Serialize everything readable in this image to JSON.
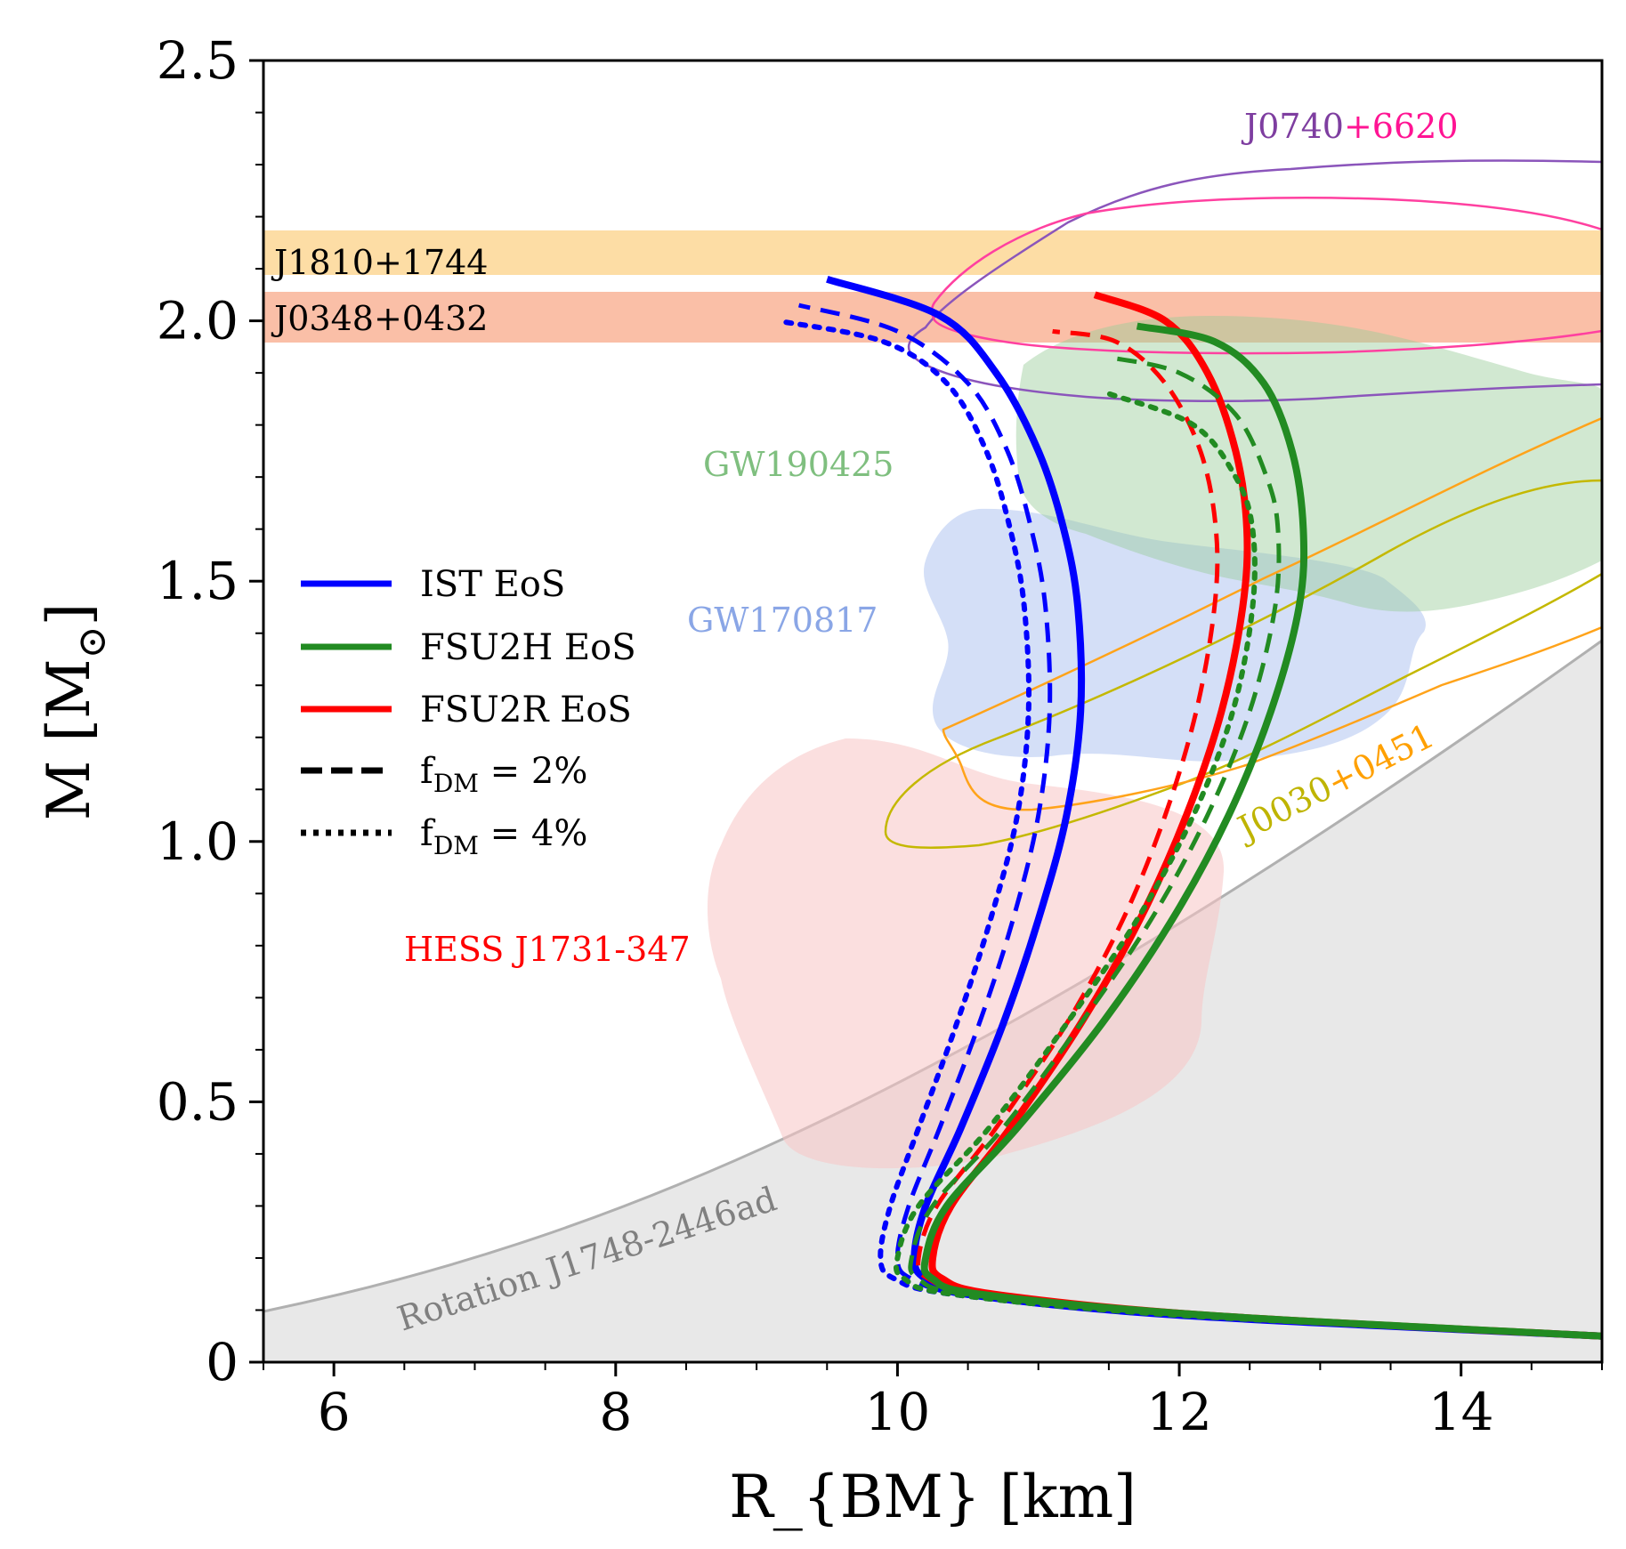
{
  "chart_data": {
    "type": "line",
    "xlabel": "R_{BM} [km]",
    "ylabel": "M [M",
    "ylabel_symbol": "⊙",
    "ylabel_close": "]",
    "xlim": [
      5.5,
      15
    ],
    "ylim": [
      0,
      2.5
    ],
    "xticks": [
      "6",
      "8",
      "10",
      "12",
      "14"
    ],
    "yticks": [
      "0",
      "0.5",
      "1.0",
      "1.5",
      "2.0",
      "2.5"
    ],
    "grid": false,
    "legend_position": "center-left",
    "legend": [
      {
        "label": "IST EoS",
        "color": "#0000ff",
        "style": "solid"
      },
      {
        "label": "FSU2H EoS",
        "color": "#228b22",
        "style": "solid"
      },
      {
        "label": "FSU2R EoS",
        "color": "#ff0000",
        "style": "solid"
      },
      {
        "label": "f",
        "sub": "DM",
        "suffix": " = 2%",
        "color": "#000000",
        "style": "dashed"
      },
      {
        "label": "f",
        "sub": "DM",
        "suffix": " = 4%",
        "color": "#000000",
        "style": "dotted"
      }
    ],
    "bands": [
      {
        "label": "J1810+1744",
        "ymin": 2.09,
        "ymax": 2.17,
        "color": "#fdd795"
      },
      {
        "label": "J0348+0432",
        "ymin": 1.96,
        "ymax": 2.05,
        "color": "#f9b89d"
      }
    ],
    "annotations": [
      {
        "text": "J0740",
        "color": "#7e3ea0"
      },
      {
        "text": "+6620",
        "color": "#ff1493"
      },
      {
        "text": "GW190425",
        "color": "#7fbf7f"
      },
      {
        "text": "GW170817",
        "color": "#8aa6e6"
      },
      {
        "text": "HESS J1731-347",
        "color": "#ff0000"
      },
      {
        "text": "J0030",
        "color": "#bfb400"
      },
      {
        "text": "+0451",
        "color": "#ffa000"
      },
      {
        "text": "Rotation J1748-2446ad",
        "color": "#808080"
      }
    ],
    "series": [
      {
        "name": "IST EoS",
        "color": "#0000ff",
        "style": "solid",
        "x": [
          15.0,
          12.0,
          10.5,
          10.2,
          10.12,
          10.2,
          10.45,
          10.75,
          11.0,
          11.2,
          11.3,
          11.28,
          11.18,
          11.0,
          10.7,
          10.3,
          9.5
        ],
        "y": [
          0.05,
          0.09,
          0.13,
          0.16,
          0.2,
          0.3,
          0.45,
          0.65,
          0.85,
          1.05,
          1.25,
          1.45,
          1.6,
          1.75,
          1.9,
          2.01,
          2.08
        ]
      },
      {
        "name": "IST EoS 2%",
        "color": "#0000ff",
        "style": "dashed",
        "x": [
          15.0,
          12.0,
          10.5,
          10.1,
          10.0,
          10.08,
          10.3,
          10.58,
          10.82,
          11.0,
          11.08,
          11.05,
          10.95,
          10.78,
          10.5,
          10.0,
          9.3
        ],
        "y": [
          0.05,
          0.09,
          0.13,
          0.16,
          0.2,
          0.3,
          0.45,
          0.65,
          0.85,
          1.05,
          1.25,
          1.45,
          1.6,
          1.75,
          1.88,
          1.98,
          2.03
        ]
      },
      {
        "name": "IST EoS 4%",
        "color": "#0000ff",
        "style": "dotted",
        "x": [
          15.0,
          12.0,
          10.4,
          9.98,
          9.88,
          9.95,
          10.15,
          10.42,
          10.66,
          10.85,
          10.93,
          10.9,
          10.8,
          10.63,
          10.35,
          9.9,
          9.15
        ],
        "y": [
          0.05,
          0.09,
          0.13,
          0.16,
          0.2,
          0.3,
          0.45,
          0.65,
          0.85,
          1.05,
          1.25,
          1.45,
          1.6,
          1.75,
          1.88,
          1.96,
          2.0
        ]
      },
      {
        "name": "FSU2R EoS",
        "color": "#ff0000",
        "style": "solid",
        "x": [
          15.0,
          12.2,
          10.7,
          10.32,
          10.25,
          10.38,
          10.8,
          11.3,
          11.72,
          12.05,
          12.3,
          12.45,
          12.48,
          12.4,
          12.2,
          11.9,
          11.4
        ],
        "y": [
          0.05,
          0.09,
          0.13,
          0.16,
          0.2,
          0.3,
          0.45,
          0.65,
          0.85,
          1.05,
          1.25,
          1.45,
          1.6,
          1.75,
          1.9,
          2.0,
          2.05
        ]
      },
      {
        "name": "FSU2R EoS 2%",
        "color": "#ff0000",
        "style": "dashed",
        "x": [
          15.0,
          12.1,
          10.6,
          10.22,
          10.15,
          10.28,
          10.7,
          11.2,
          11.6,
          11.9,
          12.12,
          12.25,
          12.26,
          12.15,
          11.9,
          11.55,
          11.1
        ],
        "y": [
          0.05,
          0.09,
          0.13,
          0.16,
          0.2,
          0.3,
          0.45,
          0.65,
          0.85,
          1.05,
          1.25,
          1.45,
          1.6,
          1.75,
          1.88,
          1.96,
          1.98
        ]
      },
      {
        "name": "FSU2H EoS",
        "color": "#228b22",
        "style": "solid",
        "x": [
          15.0,
          12.2,
          10.6,
          10.25,
          10.2,
          10.35,
          10.85,
          11.45,
          11.95,
          12.35,
          12.65,
          12.85,
          12.88,
          12.8,
          12.6,
          12.25,
          11.7
        ],
        "y": [
          0.05,
          0.09,
          0.13,
          0.16,
          0.2,
          0.3,
          0.45,
          0.65,
          0.85,
          1.05,
          1.25,
          1.45,
          1.6,
          1.75,
          1.88,
          1.96,
          1.99
        ]
      },
      {
        "name": "FSU2H EoS 2%",
        "color": "#228b22",
        "style": "dashed",
        "x": [
          15.0,
          12.1,
          10.5,
          10.15,
          10.1,
          10.25,
          10.75,
          11.3,
          11.8,
          12.2,
          12.5,
          12.68,
          12.7,
          12.62,
          12.4,
          12.0,
          11.5
        ],
        "y": [
          0.05,
          0.09,
          0.13,
          0.16,
          0.2,
          0.3,
          0.45,
          0.65,
          0.85,
          1.05,
          1.25,
          1.45,
          1.6,
          1.7,
          1.82,
          1.9,
          1.93
        ]
      },
      {
        "name": "FSU2H EoS 4%",
        "color": "#228b22",
        "style": "dotted",
        "x": [
          15.0,
          12.0,
          10.4,
          10.05,
          10.0,
          10.15,
          10.65,
          11.2,
          11.7,
          12.1,
          12.38,
          12.52,
          12.52,
          12.4,
          12.1,
          11.5
        ],
        "y": [
          0.05,
          0.09,
          0.13,
          0.16,
          0.2,
          0.3,
          0.45,
          0.65,
          0.85,
          1.05,
          1.25,
          1.45,
          1.6,
          1.7,
          1.8,
          1.86
        ]
      }
    ]
  }
}
